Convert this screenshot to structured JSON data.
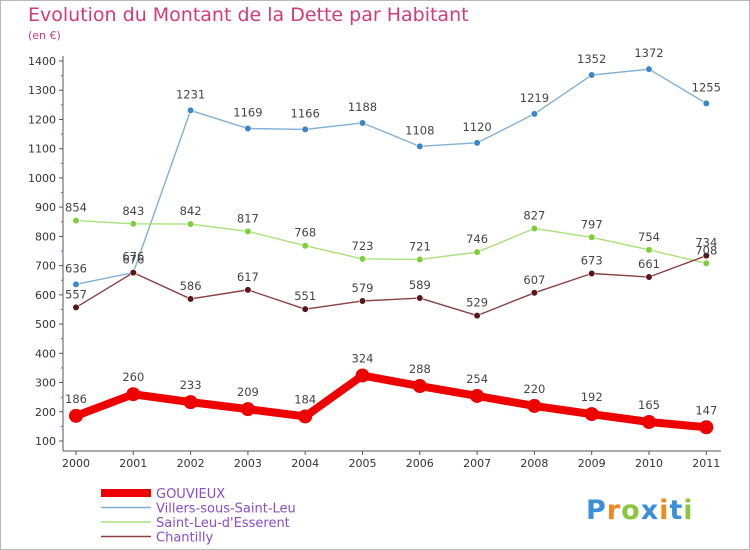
{
  "title": "Evolution du Montant de la Dette par Habitant",
  "subtitle": "(en €)",
  "logo": {
    "text": "Proxiti",
    "letters": [
      {
        "ch": "P",
        "color": "#3a8fd8"
      },
      {
        "ch": "r",
        "color": "#f08a1c"
      },
      {
        "ch": "o",
        "color": "#8cc63f"
      },
      {
        "ch": "x",
        "color": "#3a8fd8"
      },
      {
        "ch": "i",
        "color": "#f08a1c"
      },
      {
        "ch": "t",
        "color": "#3a8fd8"
      },
      {
        "ch": "i",
        "color": "#8cc63f"
      }
    ]
  },
  "chart_data": {
    "type": "line",
    "title": "Evolution du Montant de la Dette par Habitant",
    "ylabel": "(en €)",
    "x": [
      "2000",
      "2001",
      "2002",
      "2003",
      "2004",
      "2005",
      "2006",
      "2007",
      "2008",
      "2009",
      "2010",
      "2011"
    ],
    "ylim": [
      100,
      1400
    ],
    "yticks": [
      100,
      200,
      300,
      400,
      500,
      600,
      700,
      800,
      900,
      1000,
      1100,
      1200,
      1300,
      1400
    ],
    "grid": false,
    "legend_position": "bottom-left",
    "series": [
      {
        "name": "GOUVIEUX",
        "color": "#ee0000",
        "emphasis": true,
        "values": [
          186,
          260,
          233,
          209,
          184,
          324,
          288,
          254,
          220,
          192,
          165,
          147
        ]
      },
      {
        "name": "Villers-sous-Saint-Leu",
        "color": "#7fb0d8",
        "marker_color": "#3a86c8",
        "values": [
          636,
          676,
          1231,
          1169,
          1166,
          1188,
          1108,
          1120,
          1219,
          1352,
          1372,
          1255
        ]
      },
      {
        "name": "Saint-Leu-d'Esserent",
        "color": "#a8e07a",
        "marker_color": "#7ccf3a",
        "values": [
          854,
          843,
          842,
          817,
          768,
          723,
          721,
          746,
          827,
          797,
          754,
          708
        ]
      },
      {
        "name": "Chantilly",
        "color": "#8b4040",
        "marker_color": "#5a1616",
        "values": [
          557,
          676,
          586,
          617,
          551,
          579,
          589,
          529,
          607,
          673,
          661,
          734
        ]
      }
    ]
  }
}
